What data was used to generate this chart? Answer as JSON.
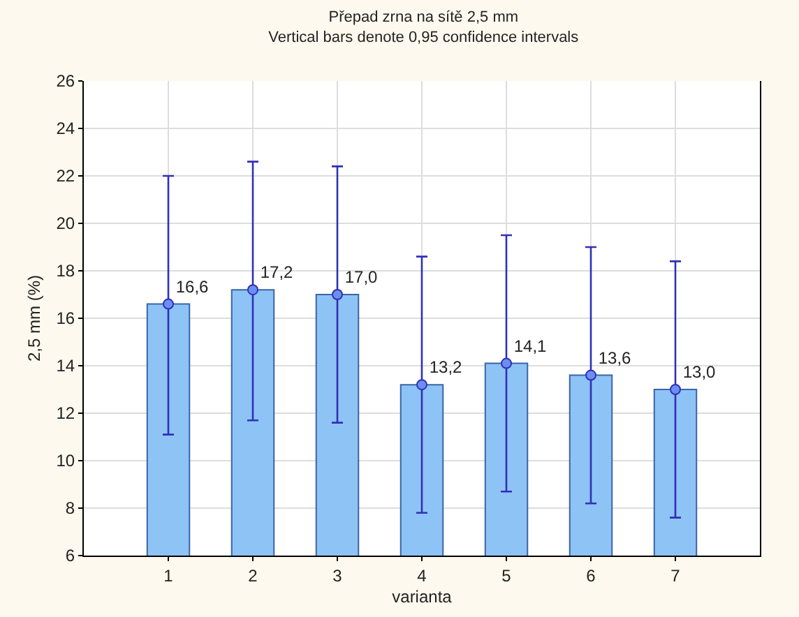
{
  "chart_data": {
    "type": "bar",
    "title": "Přepad zrna na sítě 2,5 mm",
    "subtitle": "Vertical bars denote 0,95 confidence intervals",
    "xlabel": "varianta",
    "ylabel": "2,5 mm (%)",
    "categories": [
      "1",
      "2",
      "3",
      "4",
      "5",
      "6",
      "7"
    ],
    "series": [
      {
        "color": "#8ec3f5",
        "values": [
          16.6,
          17.2,
          17.0,
          13.2,
          14.1,
          13.6,
          13.0
        ],
        "errors": [
          [
            11.1,
            22.0
          ],
          [
            11.7,
            22.6
          ],
          [
            11.6,
            22.4
          ],
          [
            7.8,
            18.6
          ],
          [
            8.7,
            19.5
          ],
          [
            8.2,
            19.0
          ],
          [
            7.6,
            18.4
          ]
        ]
      },
      {
        "type": "scatter",
        "color": "#6b8ff0",
        "marker": "circle",
        "x": [
          "1",
          "2",
          "3",
          "4",
          "5",
          "6",
          "7"
        ],
        "values": [
          16.6,
          17.2,
          17.0,
          13.2,
          14.1,
          13.6,
          13.0
        ],
        "value_labels": [
          "16,6",
          "17,2",
          "17,0",
          "13,2",
          "14,1",
          "13,6",
          "13,0"
        ]
      }
    ],
    "ylim": [
      6,
      26
    ],
    "yticks": [
      6,
      8,
      10,
      12,
      14,
      16,
      18,
      20,
      22,
      24,
      26
    ],
    "grid": true
  }
}
